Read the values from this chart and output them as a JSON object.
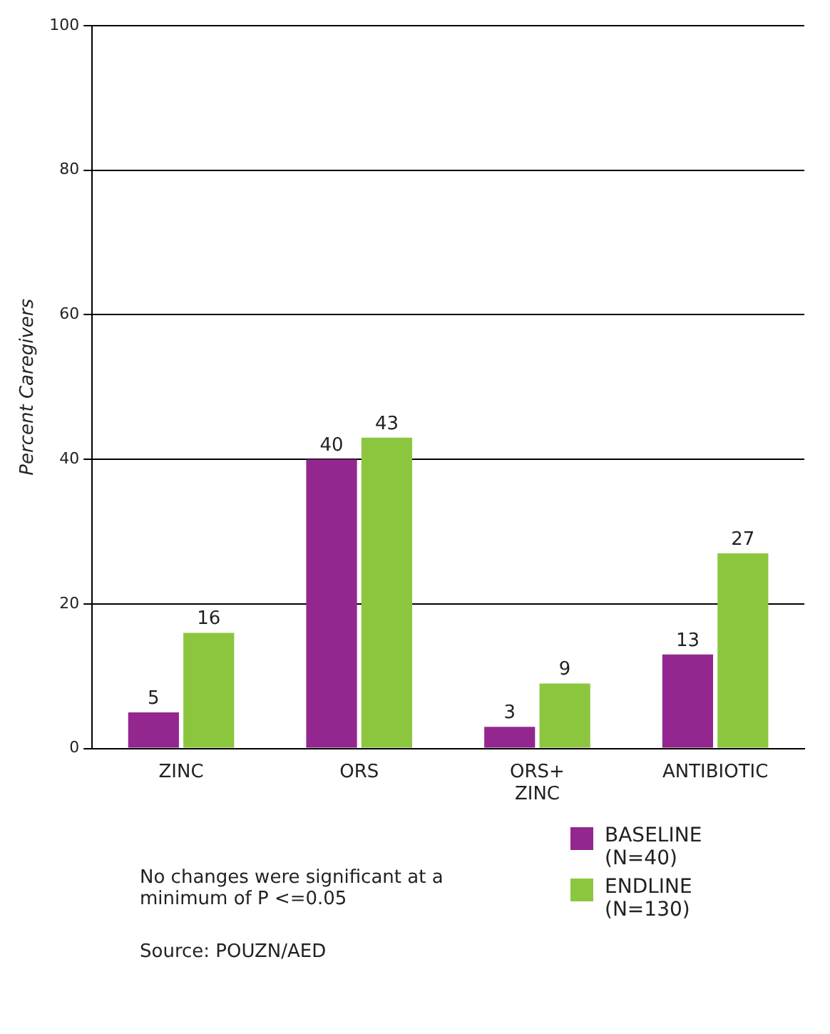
{
  "chart_data": {
    "type": "bar",
    "ylabel": "Percent Caregivers",
    "categories": [
      "ZINC",
      "ORS",
      "ORS+ ZINC",
      "ANTIBIOTIC"
    ],
    "series": [
      {
        "name": "BASELINE (N=40)",
        "color": "#93278f",
        "values": [
          5,
          40,
          3,
          13
        ]
      },
      {
        "name": "ENDLINE (N=130)",
        "color": "#8cc63f",
        "values": [
          16,
          43,
          9,
          27
        ]
      }
    ],
    "ylim": [
      0,
      100
    ],
    "yticks": [
      0,
      20,
      40,
      60,
      80,
      100
    ],
    "grid": "y",
    "data_labels": true,
    "legend": "bottom right",
    "annotations": [
      "No changes were significant at a minimum of P <=0.05",
      "Source: POUZN/AED"
    ]
  }
}
